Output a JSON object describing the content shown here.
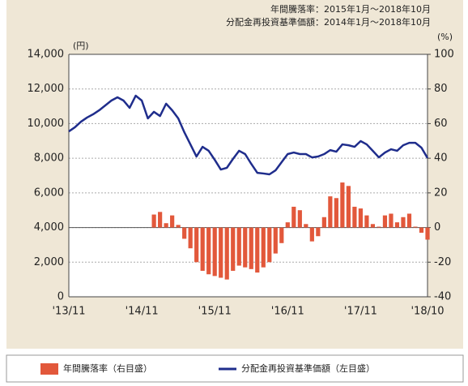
{
  "chart_data": {
    "type": "bar-line",
    "subtitle_lines": [
      "年間騰落率：2015年1月～2018年10月",
      "分配金再投資基準価額：2014年1月～2018年10月"
    ],
    "y_unit": "(円)",
    "y2_unit": "(%)",
    "categories": [
      "'13/11",
      null,
      null,
      null,
      null,
      null,
      null,
      null,
      null,
      null,
      null,
      null,
      "'14/11",
      null,
      null,
      null,
      null,
      null,
      null,
      null,
      null,
      null,
      null,
      null,
      "'15/11",
      null,
      null,
      null,
      null,
      null,
      null,
      null,
      null,
      null,
      null,
      null,
      "'16/11",
      null,
      null,
      null,
      null,
      null,
      null,
      null,
      null,
      null,
      null,
      null,
      "'17/11",
      null,
      null,
      null,
      null,
      null,
      null,
      null,
      null,
      null,
      null,
      "'18/10"
    ],
    "ylim": [
      0,
      14000
    ],
    "yticks": [
      0,
      {
        "value": 2000,
        "label": "2,000"
      },
      {
        "value": 4000,
        "label": "4,000"
      },
      {
        "value": 6000,
        "label": "6,000"
      },
      {
        "value": 8000,
        "label": "8,000"
      },
      {
        "value": 10000,
        "label": "10,000"
      },
      {
        "value": 12000,
        "label": "12,000"
      },
      {
        "value": 14000,
        "label": "14,000"
      }
    ],
    "y2lim": [
      -40,
      100
    ],
    "y2ticks": [
      -40,
      -20,
      0,
      20,
      40,
      60,
      80,
      100
    ],
    "grid": true,
    "series": [
      {
        "name": "年間騰落率（右目盛）",
        "kind": "bar",
        "axis": "y2",
        "color": "#e2583b",
        "values": [
          null,
          null,
          null,
          null,
          null,
          null,
          null,
          null,
          null,
          null,
          null,
          null,
          null,
          null,
          7.5,
          9,
          2.5,
          7,
          1.5,
          -6.5,
          -12,
          -20,
          -25,
          -27,
          -28,
          -29,
          -30,
          -25,
          -22,
          -23,
          -24,
          -26,
          -23,
          -20,
          -15,
          -9,
          3,
          12,
          10,
          2,
          -8,
          -5,
          6,
          18,
          17,
          26,
          24,
          12,
          11,
          7,
          2,
          0.5,
          7,
          8,
          3,
          6,
          8,
          0.5,
          -3,
          -7
        ]
      },
      {
        "name": "分配金再投資基準価額（左目盛）",
        "kind": "line",
        "axis": "y",
        "color": "#1f2d8c",
        "values": [
          9550,
          9790,
          10110,
          10350,
          10540,
          10770,
          11050,
          11330,
          11520,
          11330,
          10910,
          11610,
          11330,
          10300,
          10680,
          10440,
          11150,
          10770,
          10300,
          9500,
          8800,
          8100,
          8660,
          8430,
          7910,
          7350,
          7450,
          7960,
          8430,
          8240,
          7680,
          7160,
          7120,
          7070,
          7300,
          7770,
          8240,
          8330,
          8240,
          8240,
          8050,
          8100,
          8240,
          8470,
          8380,
          8800,
          8750,
          8660,
          8990,
          8800,
          8430,
          8050,
          8330,
          8520,
          8430,
          8750,
          8890,
          8890,
          8610,
          8010
        ]
      }
    ]
  }
}
